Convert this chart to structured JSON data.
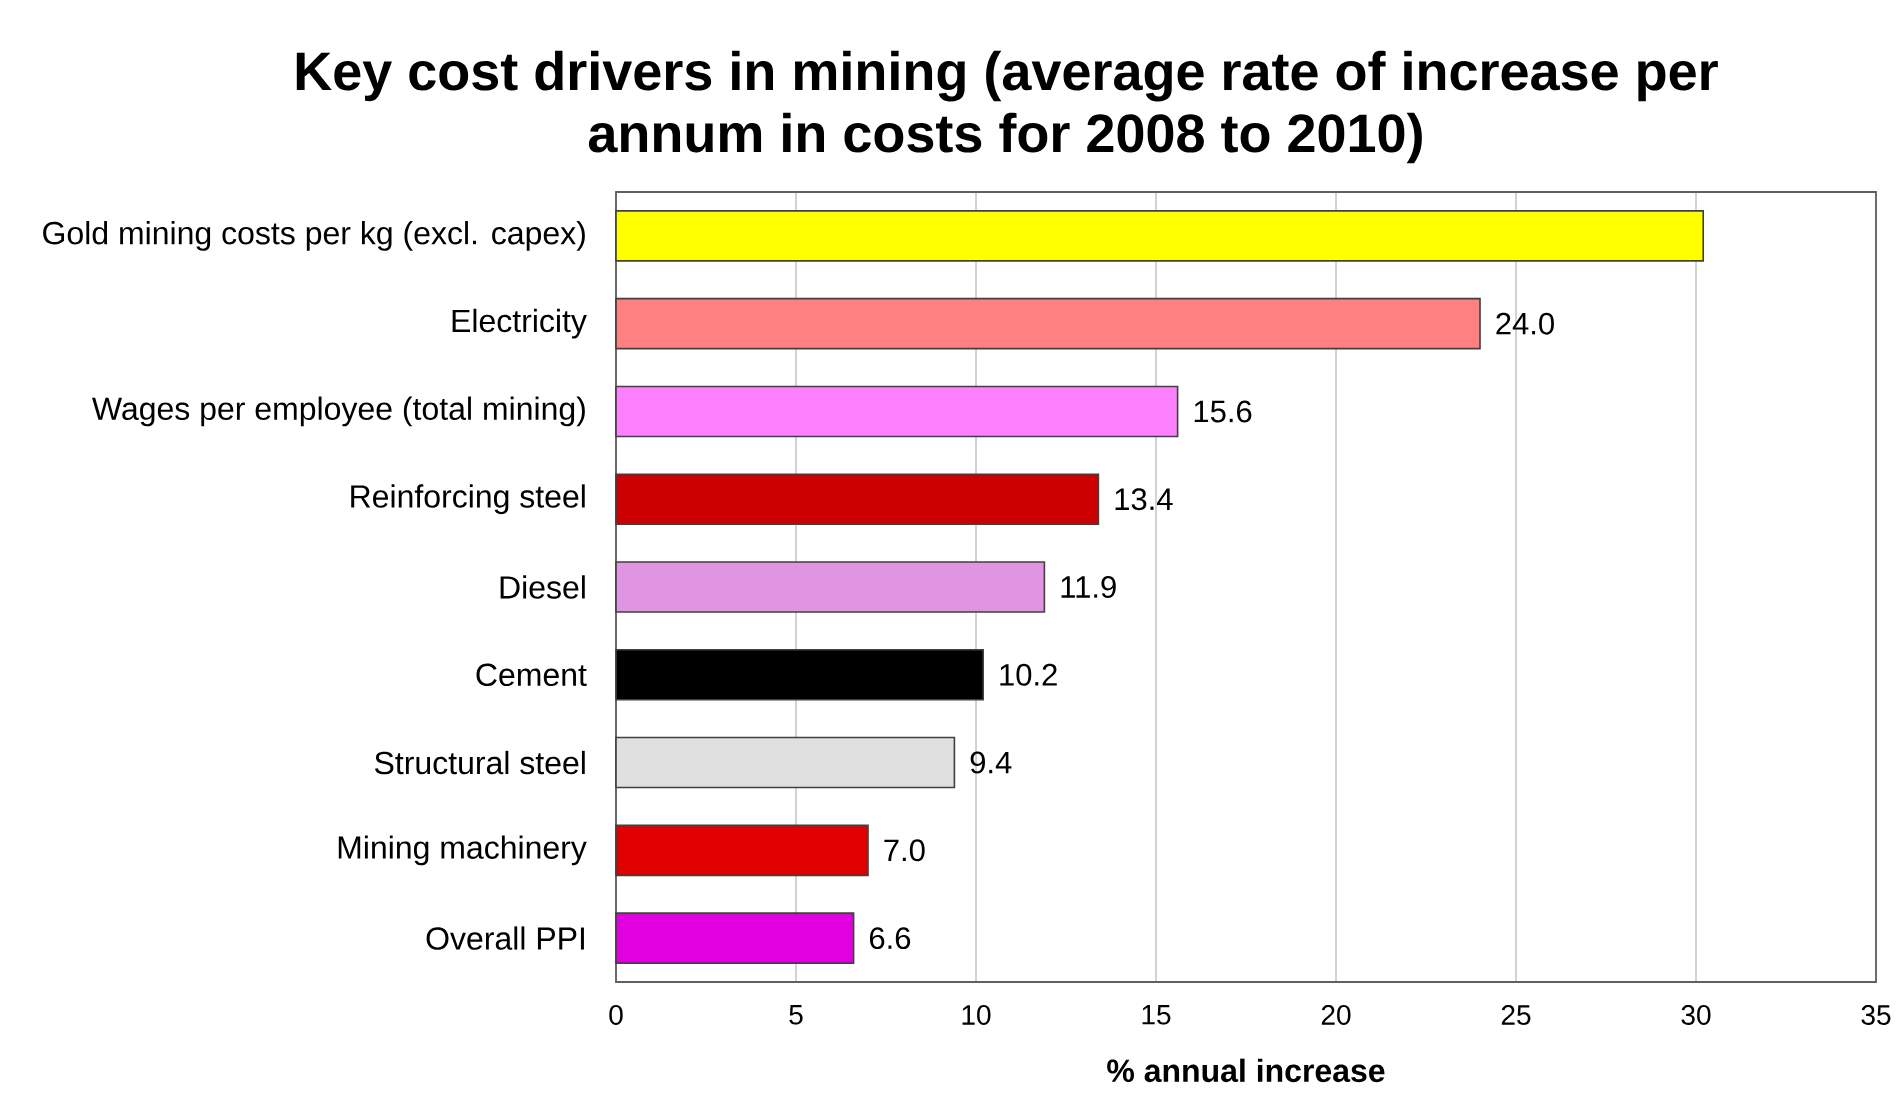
{
  "chart_data": {
    "type": "bar",
    "orientation": "horizontal",
    "title": "Key cost drivers in mining (average rate of increase per annum in costs for 2008 to 2010)",
    "xlabel": "% annual increase",
    "categories": [
      "Gold mining costs per kg (excl. capex)",
      "Electricity",
      "Wages per employee (total mining)",
      "Reinforcing steel",
      "Diesel",
      "Cement",
      "Structural steel",
      "Mining machinery",
      "Overall PPI"
    ],
    "values": [
      30.2,
      24.0,
      15.6,
      13.4,
      11.9,
      10.2,
      9.4,
      7.0,
      6.6
    ],
    "colors": [
      "#ffff00",
      "#ff8080",
      "#ff80ff",
      "#cc0000",
      "#e095e0",
      "#000000",
      "#e0e0e0",
      "#e00000",
      "#e000e0"
    ],
    "value_labels": [
      null,
      "24.0",
      "15.6",
      "13.4",
      "11.9",
      "10.2",
      "9.4",
      "7.0",
      "6.6"
    ],
    "xlim": [
      0,
      35
    ],
    "xticks": [
      0,
      5,
      10,
      15,
      20,
      25,
      30,
      35
    ],
    "grid": "x"
  }
}
